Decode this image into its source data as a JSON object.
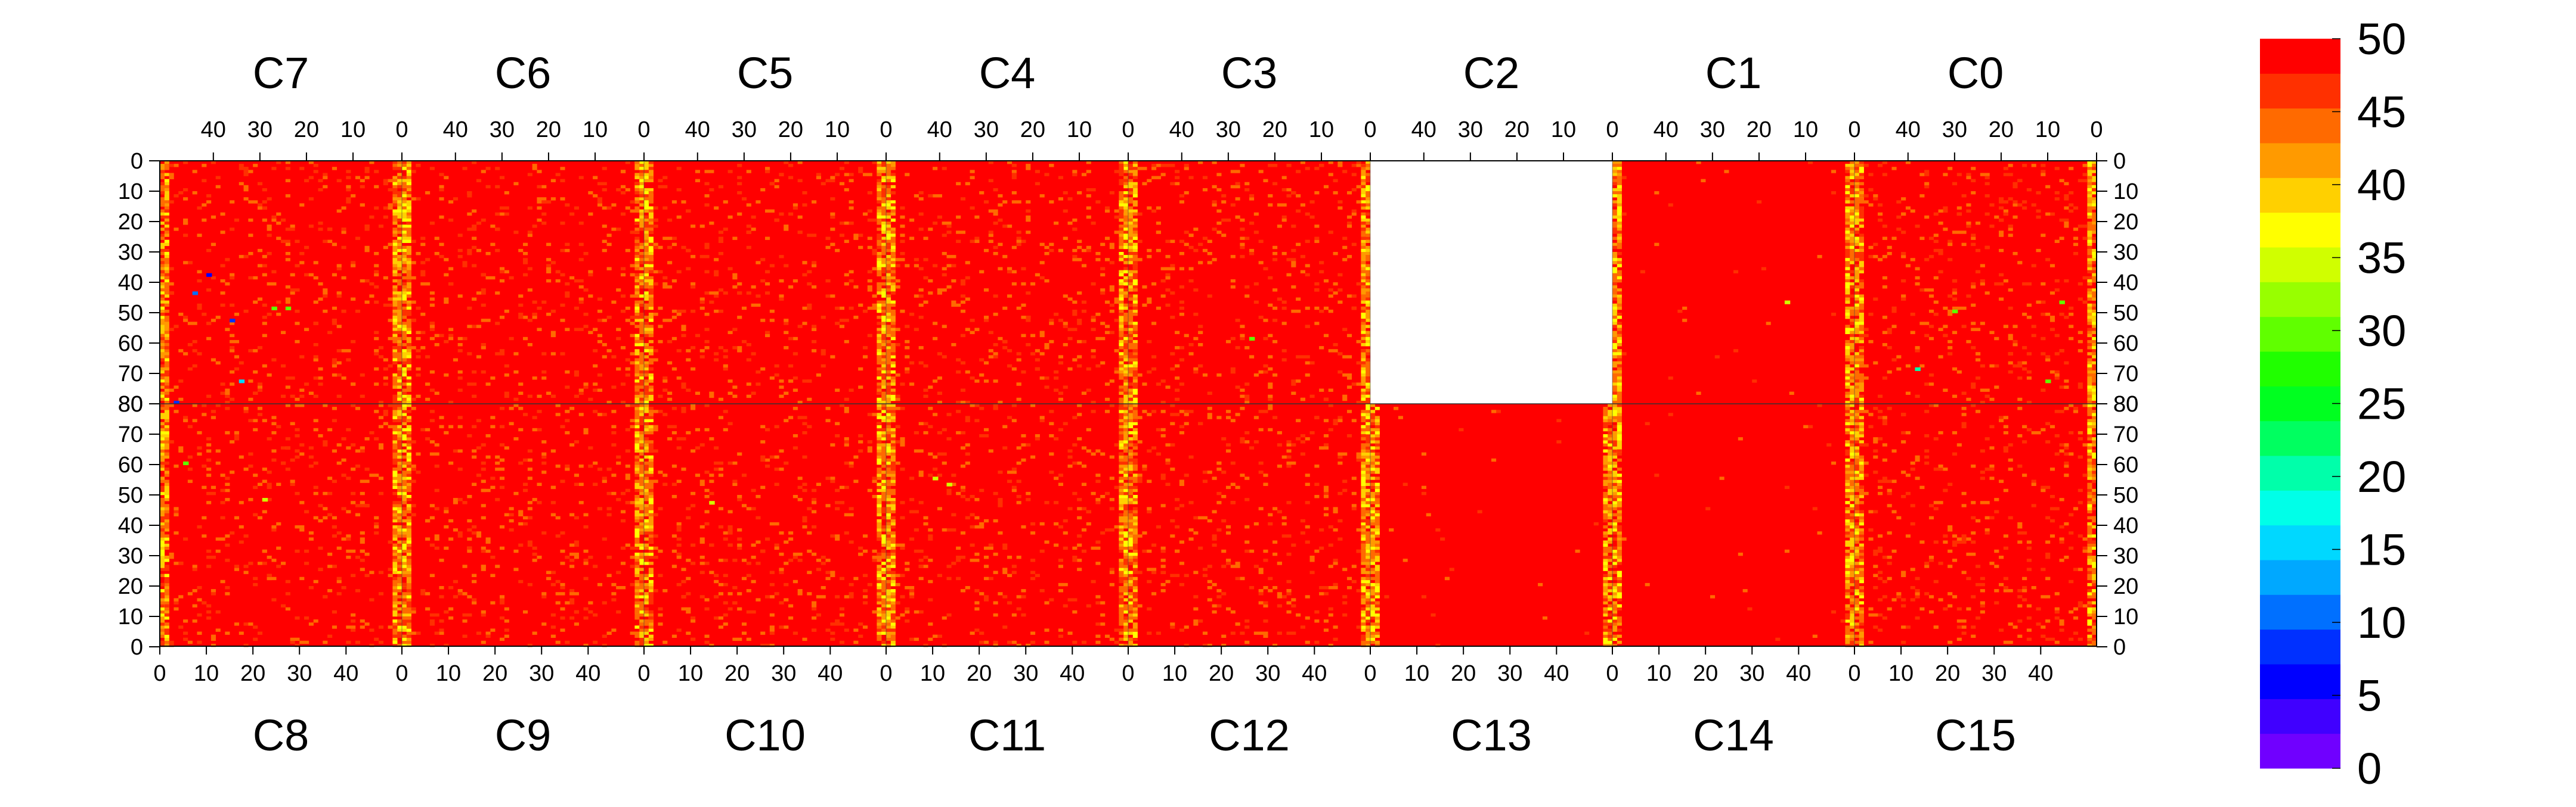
{
  "chart_data": {
    "type": "heatmap",
    "title": "",
    "value_range": [
      0,
      50
    ],
    "colorbar": {
      "levels": [
        0,
        2.5,
        5,
        7.5,
        10,
        12.5,
        15,
        17.5,
        20,
        22.5,
        25,
        27.5,
        30,
        32.5,
        35,
        37.5,
        40,
        42.5,
        45,
        47.5,
        50
      ],
      "tick_labels": [
        "0",
        "5",
        "10",
        "15",
        "20",
        "25",
        "30",
        "35",
        "40",
        "45",
        "50"
      ],
      "colors": [
        "#7000ff",
        "#4000ff",
        "#0000ff",
        "#0030ff",
        "#0070ff",
        "#00a8ff",
        "#00d8ff",
        "#00ffe8",
        "#00ffaa",
        "#00ff60",
        "#00ff20",
        "#20ff00",
        "#60ff00",
        "#98ff00",
        "#d0ff00",
        "#ffff00",
        "#ffd000",
        "#ff9a00",
        "#ff6a00",
        "#ff3000",
        "#ff0000"
      ]
    },
    "top_chips": [
      "C7",
      "C6",
      "C5",
      "C4",
      "C3",
      "C2",
      "C1",
      "C0"
    ],
    "bottom_chips": [
      "C8",
      "C9",
      "C10",
      "C11",
      "C12",
      "C13",
      "C14",
      "C15"
    ],
    "top_column_ticks": [
      "40",
      "30",
      "20",
      "10",
      "0"
    ],
    "bottom_column_ticks": [
      "0",
      "10",
      "20",
      "30",
      "40"
    ],
    "top_row_ticks": [
      "0",
      "10",
      "20",
      "30",
      "40",
      "50",
      "60",
      "70",
      "80"
    ],
    "bottom_row_ticks": [
      "80",
      "70",
      "60",
      "50",
      "40",
      "30",
      "20",
      "10",
      "0"
    ],
    "chip_columns": 52,
    "chip_rows": 80,
    "typical_value": 50,
    "column_edge_value_range": [
      38,
      48
    ],
    "empty_chips": [
      "C2"
    ],
    "low_value_pixels": [
      {
        "chip": "C7",
        "col": 44,
        "row": 43,
        "value": 10
      },
      {
        "chip": "C7",
        "col": 41,
        "row": 37,
        "value": 7
      },
      {
        "chip": "C7",
        "col": 36,
        "row": 52,
        "value": 8
      },
      {
        "chip": "C7",
        "col": 34,
        "row": 72,
        "value": 15
      },
      {
        "chip": "C7",
        "col": 48,
        "row": 79,
        "value": 8
      },
      {
        "chip": "C7",
        "col": 27,
        "row": 48,
        "value": 30
      },
      {
        "chip": "C7",
        "col": 24,
        "row": 48,
        "value": 30
      },
      {
        "chip": "C3",
        "col": 25,
        "row": 58,
        "value": 30
      },
      {
        "chip": "C0",
        "col": 30,
        "row": 49,
        "value": 30
      },
      {
        "chip": "C0",
        "col": 38,
        "row": 68,
        "value": 22
      },
      {
        "chip": "C0",
        "col": 10,
        "row": 72,
        "value": 30
      },
      {
        "chip": "C0",
        "col": 7,
        "row": 46,
        "value": 32
      },
      {
        "chip": "C1",
        "col": 14,
        "row": 46,
        "value": 35
      },
      {
        "chip": "C8",
        "col": 5,
        "row": 60,
        "value": 32
      },
      {
        "chip": "C8",
        "col": 22,
        "row": 48,
        "value": 35
      },
      {
        "chip": "C11",
        "col": 10,
        "row": 55,
        "value": 35
      },
      {
        "chip": "C11",
        "col": 13,
        "row": 53,
        "value": 35
      },
      {
        "chip": "C10",
        "col": 14,
        "row": 47,
        "value": 35
      }
    ]
  }
}
